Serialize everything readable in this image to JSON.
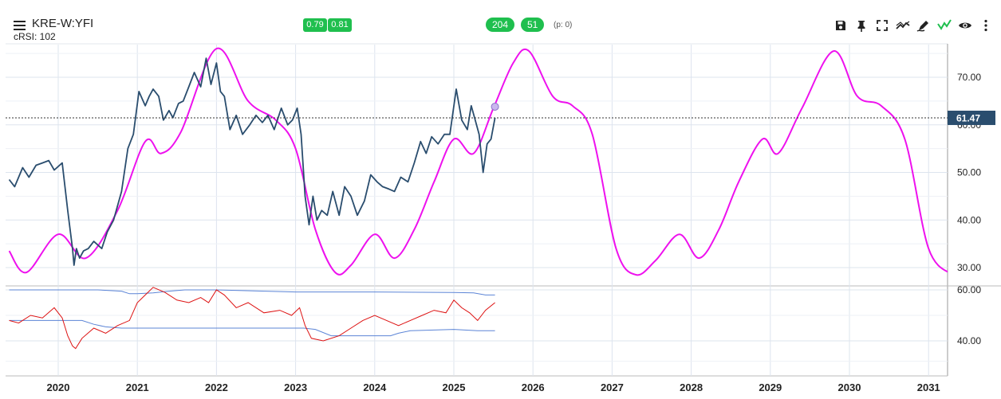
{
  "header": {
    "title": "KRE-W:YFI",
    "subtitle": "cRSI: 102",
    "badge_left_1": "0.79",
    "badge_left_2": "0.81",
    "badge_mid_1": "204",
    "badge_mid_2": "51",
    "p_count": "(p: 0)"
  },
  "toolbar": {
    "icons": [
      "save-icon",
      "pin-icon",
      "fullscreen-icon",
      "trend-icon",
      "draw-icon",
      "signal-icon",
      "eye-icon",
      "more-icon"
    ]
  },
  "colors": {
    "price": "#2a4d6e",
    "cycle": "#ee11ee",
    "crsi": "#dd1111",
    "bands": "#5b84d6",
    "badge": "#1fbf4e",
    "last_label_bg": "#2a4d6e"
  },
  "chart_data": [
    {
      "type": "line",
      "title": "",
      "ylim": [
        26,
        77
      ],
      "y_ticks": [
        "70.00",
        "60.00",
        "50.00",
        "40.00",
        "30.00"
      ],
      "x_ticks": [
        "2020",
        "2021",
        "2022",
        "2023",
        "2024",
        "2025",
        "2026",
        "2027",
        "2028",
        "2029",
        "2030",
        "2031"
      ],
      "last_value_label": "61.47",
      "last_value": 61.47,
      "grid": true,
      "series": [
        {
          "role": "price",
          "x": [
            2019.38,
            2019.45,
            2019.55,
            2019.63,
            2019.72,
            2019.8,
            2019.88,
            2019.95,
            2020.05,
            2020.12,
            2020.18,
            2020.2,
            2020.23,
            2020.27,
            2020.32,
            2020.38,
            2020.45,
            2020.55,
            2020.62,
            2020.7,
            2020.8,
            2020.88,
            2020.95,
            2021.02,
            2021.1,
            2021.15,
            2021.2,
            2021.27,
            2021.33,
            2021.4,
            2021.45,
            2021.52,
            2021.58,
            2021.65,
            2021.72,
            2021.8,
            2021.87,
            2021.93,
            2022.0,
            2022.05,
            2022.1,
            2022.17,
            2022.25,
            2022.33,
            2022.42,
            2022.5,
            2022.58,
            2022.65,
            2022.73,
            2022.82,
            2022.9,
            2022.96,
            2023.02,
            2023.07,
            2023.12,
            2023.17,
            2023.22,
            2023.27,
            2023.33,
            2023.4,
            2023.47,
            2023.55,
            2023.62,
            2023.7,
            2023.78,
            2023.87,
            2023.95,
            2024.03,
            2024.1,
            2024.18,
            2024.25,
            2024.33,
            2024.42,
            2024.5,
            2024.58,
            2024.65,
            2024.72,
            2024.8,
            2024.88,
            2024.95,
            2025.03,
            2025.1,
            2025.17,
            2025.22,
            2025.27,
            2025.32,
            2025.37,
            2025.42,
            2025.47,
            2025.52
          ],
          "y": [
            48.5,
            47.0,
            51.0,
            49.0,
            51.5,
            52.0,
            52.5,
            50.5,
            52.0,
            42.0,
            34.0,
            30.5,
            34.0,
            32.0,
            33.5,
            34.0,
            35.5,
            34.0,
            37.5,
            40.0,
            46.0,
            55.0,
            58.0,
            67.0,
            64.0,
            66.0,
            67.5,
            66.0,
            61.0,
            63.0,
            61.5,
            64.5,
            65.0,
            68.0,
            71.0,
            68.0,
            74.0,
            68.5,
            73.0,
            67.0,
            66.0,
            59.0,
            62.0,
            58.0,
            60.0,
            62.0,
            60.5,
            62.0,
            59.0,
            63.5,
            60.0,
            61.0,
            63.5,
            58.0,
            45.0,
            39.0,
            45.0,
            40.0,
            42.0,
            41.0,
            46.0,
            41.0,
            47.0,
            45.0,
            41.0,
            44.0,
            49.5,
            48.0,
            47.0,
            46.5,
            46.0,
            49.0,
            48.0,
            52.0,
            56.5,
            54.0,
            57.5,
            56.0,
            58.0,
            58.0,
            67.5,
            61.0,
            59.0,
            64.0,
            61.0,
            58.0,
            50.0,
            56.0,
            57.0,
            61.47
          ]
        },
        {
          "role": "cycle projection",
          "x": [
            2019.38,
            2019.6,
            2020.0,
            2020.35,
            2020.75,
            2021.1,
            2021.3,
            2021.55,
            2022.0,
            2022.4,
            2022.75,
            2023.0,
            2023.25,
            2023.5,
            2023.7,
            2024.0,
            2024.25,
            2024.5,
            2024.75,
            2025.0,
            2025.25,
            2025.5,
            2025.75,
            2025.95,
            2026.25,
            2026.5,
            2026.75,
            2027.05,
            2027.3,
            2027.55,
            2027.85,
            2028.1,
            2028.35,
            2028.6,
            2028.9,
            2029.1,
            2029.4,
            2029.8,
            2030.1,
            2030.4,
            2030.7,
            2031.0,
            2031.3
          ],
          "y": [
            33.5,
            29.0,
            37.0,
            32.0,
            42.0,
            56.5,
            54.0,
            58.5,
            76.0,
            65.0,
            61.0,
            55.0,
            38.0,
            29.0,
            30.5,
            37.0,
            32.0,
            38.0,
            48.0,
            57.0,
            54.0,
            63.5,
            73.0,
            75.5,
            66.0,
            64.0,
            58.0,
            34.0,
            28.5,
            31.5,
            37.0,
            32.0,
            38.0,
            48.0,
            57.0,
            54.0,
            63.5,
            75.5,
            66.0,
            64.0,
            57.0,
            34.0,
            28.5
          ]
        }
      ]
    },
    {
      "type": "line",
      "title": "",
      "ylim": [
        30,
        62
      ],
      "y_ticks": [
        "60.00",
        "40.00"
      ],
      "grid": true,
      "series": [
        {
          "role": "cRSI",
          "x": [
            2019.38,
            2019.5,
            2019.65,
            2019.8,
            2019.95,
            2020.05,
            2020.12,
            2020.18,
            2020.22,
            2020.3,
            2020.45,
            2020.6,
            2020.75,
            2020.9,
            2021.0,
            2021.1,
            2021.2,
            2021.35,
            2021.5,
            2021.65,
            2021.8,
            2021.9,
            2022.0,
            2022.1,
            2022.25,
            2022.4,
            2022.6,
            2022.8,
            2022.95,
            2023.05,
            2023.12,
            2023.2,
            2023.35,
            2023.55,
            2023.7,
            2023.85,
            2024.0,
            2024.15,
            2024.3,
            2024.45,
            2024.6,
            2024.75,
            2024.9,
            2025.0,
            2025.1,
            2025.2,
            2025.3,
            2025.4,
            2025.52
          ],
          "y": [
            48,
            47,
            50,
            49,
            53,
            49,
            42,
            38,
            37,
            41,
            45,
            43,
            46,
            48,
            55,
            58,
            61,
            59,
            56,
            55,
            57,
            55,
            60,
            58,
            53,
            55,
            51,
            52,
            50,
            53,
            46,
            41,
            40,
            42,
            45,
            48,
            50,
            48,
            46,
            48,
            50,
            52,
            51,
            56,
            53,
            51,
            48,
            52,
            55
          ]
        },
        {
          "role": "upper band",
          "x": [
            2019.38,
            2020.5,
            2020.8,
            2020.9,
            2021.0,
            2021.2,
            2021.4,
            2021.6,
            2022.0,
            2023.0,
            2024.0,
            2025.0,
            2025.25,
            2025.4,
            2025.52
          ],
          "y": [
            60.0,
            60.0,
            59.5,
            58.5,
            58.5,
            58.8,
            59.5,
            60.0,
            60.0,
            59.2,
            59.2,
            59.0,
            58.8,
            58.0,
            58.0
          ]
        },
        {
          "role": "lower band",
          "x": [
            2019.38,
            2020.3,
            2020.45,
            2020.6,
            2020.8,
            2021.0,
            2022.0,
            2023.1,
            2023.25,
            2023.45,
            2024.0,
            2024.2,
            2024.3,
            2024.45,
            2025.0,
            2025.3,
            2025.52
          ],
          "y": [
            48.0,
            48.0,
            46.5,
            45.5,
            45.0,
            45.0,
            45.0,
            45.0,
            44.5,
            42.0,
            42.0,
            42.0,
            43.0,
            44.0,
            44.5,
            44.0,
            44.0
          ]
        }
      ]
    }
  ]
}
